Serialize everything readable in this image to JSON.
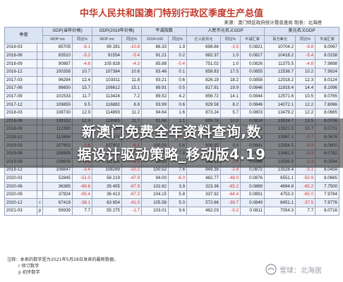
{
  "title": "中华人民共和国澳门特别行政区季度生产总值",
  "source": "来源：澳门特区政府统计暨普查局  制表：北海居",
  "header": {
    "col0": "季度",
    "gdp_current": "GDP(当年价格)",
    "gdp_2019": "GDP(2019年价格)",
    "deflator": "平减指数",
    "gdp_rmb": "人民币元名义GDP",
    "gdp_usd": "美元名义GDP",
    "sub": [
      "MOP mn",
      "同比%",
      "MOP mn",
      "同比%",
      "2019=100",
      "同比%",
      "亿人民币元",
      "同比%",
      "平减汇率",
      "百万美元",
      "同比%",
      "平减汇率"
    ]
  },
  "rows": [
    {
      "p": "2016-03",
      "f": "",
      "v": [
        "85705",
        "-9.1",
        "99 281",
        "-10.8",
        "86.33",
        "1.9",
        "698.86",
        "-3.5",
        "0.0821",
        "10704.2",
        "-9.8",
        "8.0067"
      ]
    },
    {
      "p": "2016-06",
      "f": "",
      "v": [
        "83510",
        "-5.2",
        "91554",
        "-5.4",
        "91.21",
        "0.2",
        "682.37",
        "1.0",
        "0.0817",
        "10418.2",
        "-5.4",
        "8.0158"
      ]
    },
    {
      "p": "2016-09",
      "f": "",
      "v": [
        "90887",
        "-4.8",
        "105 828",
        "-4.3",
        "85.88",
        "-0.4",
        "751.02",
        "1.0",
        "0.0826",
        "11375.5",
        "-4.8",
        "7.9898"
      ]
    },
    {
      "p": "2016-12",
      "f": "",
      "v": [
        "100358",
        "10.7",
        "107384",
        "10.6",
        "93.46",
        "0.1",
        "858.83",
        "17.5",
        "0.0855",
        "12538.7",
        "10.2",
        "7.9924"
      ]
    },
    {
      "p": "2017-03",
      "f": "",
      "v": [
        "96294",
        "12.4",
        "103311",
        "11.8",
        "93.21",
        "0.6",
        "826.19",
        "18.2",
        "0.0858",
        "12018.2",
        "12.3",
        "8.0124"
      ]
    },
    {
      "p": "2017-06",
      "f": "",
      "v": [
        "96650",
        "15.7",
        "106612",
        "15.1",
        "89.91",
        "0.5",
        "817.91",
        "19.9",
        "0.0846",
        "11918.4",
        "14.4",
        "8.1096"
      ]
    },
    {
      "p": "2017-09",
      "f": "",
      "v": [
        "101533",
        "11.7",
        "113424",
        "7.2",
        "89.52",
        "4.2",
        "856.72",
        "14.1",
        "0.0844",
        "12571.6",
        "10.5",
        "8.0765"
      ]
    },
    {
      "p": "2017-12",
      "f": "",
      "v": [
        "109855",
        "9.5",
        "116882",
        "8.8",
        "93.99",
        "0.6",
        "929.58",
        "8.2",
        "0.0846",
        "14072.1",
        "12.2",
        "7.8066"
      ]
    },
    {
      "p": "2018-03",
      "f": "",
      "v": [
        "108730",
        "12.9",
        "114893",
        "11.2",
        "94.64",
        "1.6",
        "873.24",
        "5.7",
        "0.0803",
        "13479.2",
        "12.2",
        "8.0665"
      ]
    },
    {
      "p": "2018-06",
      "f": "",
      "v": [
        "109152",
        "12.9",
        "119085",
        "11.7",
        "91.66",
        "1.1",
        "899.76",
        "10.0",
        "0.0824",
        "13524.7",
        "13.5",
        "8.0706"
      ]
    },
    {
      "p": "2018-09",
      "f": "",
      "v": [
        "112390",
        "10.7",
        "123210",
        "8.6",
        "91.22",
        "1.9",
        "962.07",
        "12.3",
        "0.0856",
        "13921.5",
        "10.7",
        "8.0731"
      ]
    },
    {
      "p": "2018-12",
      "f": "",
      "v": [
        "112684",
        "2.6",
        "120574",
        "3.2",
        "93.46",
        "-0.6",
        "972.30",
        "4.6",
        "0.0863",
        "13967.1",
        "-0.7",
        "8.0678"
      ]
    },
    {
      "p": "2019-03",
      "f": "",
      "v": [
        "107902",
        "-0.8",
        "107902",
        "-6.1",
        "100.00",
        "5.6",
        "906.95",
        "3.9",
        "0.0841",
        "13354.5",
        "-0.9",
        "8.0800"
      ]
    },
    {
      "p": "2019-06",
      "f": "",
      "v": [
        "108909",
        "-0.2",
        "110275",
        "-7.4",
        "98.76",
        "7.8",
        "929.07",
        "3.3",
        "0.0853",
        "13481.5",
        "-0.3",
        "8.0782"
      ]
    },
    {
      "p": "2019-09",
      "f": "",
      "v": [
        "109606",
        "-2.5",
        "111356",
        "-9.6",
        "98.43",
        "7.9",
        "948.91",
        "-1.4",
        "0.0866",
        "13599.9",
        "-2.3",
        "8.0594"
      ]
    },
    {
      "p": "2019-12",
      "f": "",
      "v": [
        "108847",
        "-3.4",
        "108289",
        "-10.2",
        "100.52",
        "7.6",
        "949.38",
        "-2.4",
        "0.0872",
        "13528.4",
        "-3.1",
        "8.0459"
      ]
    },
    {
      "p": "2020-03",
      "f": "",
      "v": [
        "52845",
        "-51.0",
        "56 219",
        "-47.9",
        "94.00",
        "-6.0",
        "462.77",
        "-49.0",
        "0.0876",
        "6551.1",
        "-50.9",
        "8.0665"
      ]
    },
    {
      "p": "2020-06",
      "f": "",
      "v": [
        "36385",
        "-66.6",
        "35 455",
        "-67.9",
        "102.62",
        "3.9",
        "323.36",
        "-65.2",
        "0.0889",
        "4694.8",
        "-65.2",
        "7.7500"
      ]
    },
    {
      "p": "2020-09",
      "f": "",
      "v": [
        "37924",
        "-65.4",
        "36 413",
        "-67.3",
        "104.15",
        "5.8",
        "337.92",
        "-64.4",
        "0.0891",
        "4753.3",
        "-65.0",
        "7.9784"
      ]
    },
    {
      "p": "2020-12",
      "f": "r",
      "v": [
        "67419",
        "-38.1",
        "63 854",
        "-41.0",
        "105.58",
        "5.0",
        "572.66",
        "-39.7",
        "0.0849",
        "8451.1",
        "-37.5",
        "7.9776"
      ]
    },
    {
      "p": "2021-03",
      "f": "p",
      "v": [
        "56939",
        "7.7",
        "55 275",
        "-1.7",
        "103.01",
        "9.6",
        "462.03",
        "-0.2",
        "0.0811",
        "7054.3",
        "7.7",
        "8.0716"
      ]
    }
  ],
  "footnotes": [
    "注释：本表的数字是为2021年5月28日发表的最新数据。",
    "r 修订数字",
    "p 初步数字"
  ],
  "overlay": {
    "line1": "新澳门免费全年资料查询,数",
    "line2": "据设计驱动策略_移动版4.19"
  },
  "watermark": {
    "text": "雪球：北海居",
    "icon": "snowball-icon"
  },
  "colors": {
    "title": "#c0392b",
    "negative": "#d62a2a",
    "header_bg": "#dbe4f3"
  }
}
